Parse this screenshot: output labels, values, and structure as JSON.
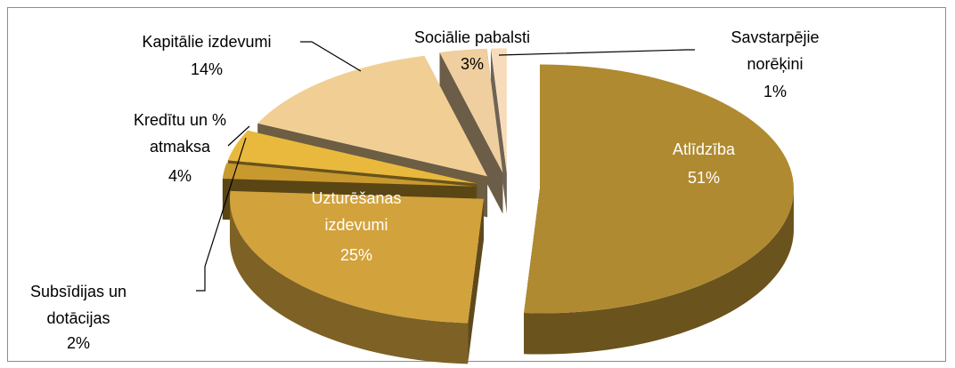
{
  "chart_data": {
    "type": "pie",
    "categories": [
      "Atlīdzība",
      "Uzturēšanas izdevumi",
      "Subsīdijas un dotācijas",
      "Kredītu un % atmaksa",
      "Kapitālie izdevumi",
      "Sociālie pabalsti",
      "Savstarpējie norēķini"
    ],
    "values": [
      51,
      25,
      2,
      4,
      14,
      3,
      1
    ],
    "value_labels": [
      "51%",
      "25%",
      "2%",
      "4%",
      "14%",
      "3%",
      "1%"
    ],
    "colors": [
      "#b08a30",
      "#d2a23c",
      "#c8992e",
      "#e9b93e",
      "#f1cf94",
      "#efcf9f",
      "#f7dcbc"
    ]
  }
}
